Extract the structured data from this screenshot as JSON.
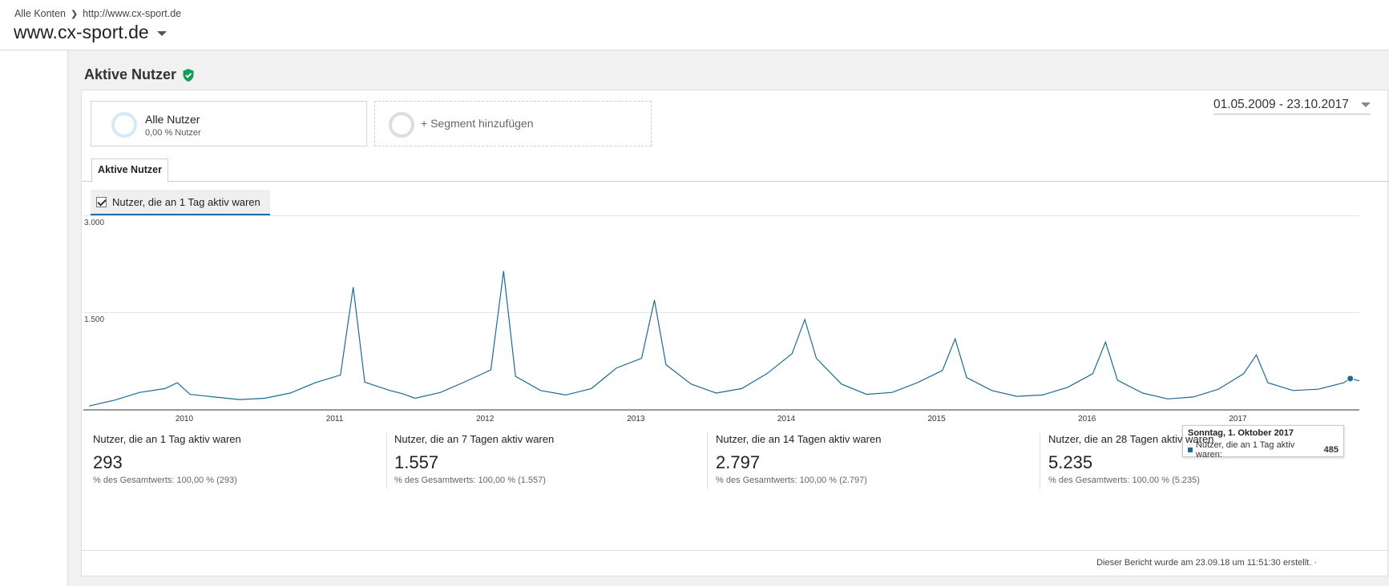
{
  "breadcrumb": {
    "root": "Alle Konten",
    "account": "http://www.cx-sport.de"
  },
  "property": {
    "name": "www.cx-sport.de"
  },
  "report": {
    "title": "Aktive Nutzer"
  },
  "segments": [
    {
      "name": "Alle Nutzer",
      "sub": "0,00 % Nutzer"
    },
    {
      "name": "+ Segment hinzufügen"
    }
  ],
  "date_range": "01.05.2009 - 23.10.2017",
  "tab": {
    "label": "Aktive Nutzer"
  },
  "metric_selector": {
    "label": "Nutzer, die an 1 Tag aktiv waren",
    "checked": true
  },
  "colors": {
    "series": "#1b6a97",
    "accent": "#1e6fa5",
    "verified": "#0f9d58"
  },
  "chart_data": {
    "type": "line",
    "title": "",
    "xlabel": "",
    "ylabel": "",
    "ylim": [
      0,
      3000
    ],
    "yticks": [
      "1.500",
      "3.000"
    ],
    "ytick_values": [
      1500,
      3000
    ],
    "grid": true,
    "x_range": [
      "2009-05-01",
      "2017-10-23"
    ],
    "xticks": [
      "2010",
      "2011",
      "2012",
      "2013",
      "2014",
      "2015",
      "2016",
      "2017"
    ],
    "series": [
      {
        "name": "Nutzer, die an 1 Tag aktiv waren",
        "note_on_resolution": "approximate weekly envelope read from chart",
        "x": [
          "2009-05",
          "2009-07",
          "2009-09",
          "2009-11",
          "2009-12",
          "2010-01",
          "2010-03",
          "2010-05",
          "2010-07",
          "2010-09",
          "2010-11",
          "2011-01",
          "2011-02",
          "2011-03",
          "2011-05",
          "2011-06",
          "2011-07",
          "2011-09",
          "2011-11",
          "2012-01",
          "2012-02",
          "2012-03",
          "2012-05",
          "2012-07",
          "2012-09",
          "2012-11",
          "2013-01",
          "2013-02",
          "2013-03",
          "2013-05",
          "2013-07",
          "2013-09",
          "2013-11",
          "2014-01",
          "2014-02",
          "2014-03",
          "2014-05",
          "2014-07",
          "2014-09",
          "2014-11",
          "2015-01",
          "2015-02",
          "2015-03",
          "2015-05",
          "2015-07",
          "2015-09",
          "2015-11",
          "2016-01",
          "2016-02",
          "2016-03",
          "2016-05",
          "2016-07",
          "2016-09",
          "2016-11",
          "2017-01",
          "2017-02",
          "2017-03",
          "2017-05",
          "2017-07",
          "2017-09",
          "2017-10-01",
          "2017-10-23"
        ],
        "y": [
          60,
          150,
          270,
          330,
          420,
          240,
          200,
          160,
          180,
          260,
          420,
          540,
          1900,
          430,
          300,
          250,
          180,
          270,
          440,
          620,
          2150,
          520,
          300,
          230,
          330,
          650,
          800,
          1700,
          700,
          400,
          260,
          330,
          560,
          870,
          1400,
          800,
          400,
          240,
          270,
          420,
          610,
          1100,
          500,
          300,
          210,
          230,
          350,
          560,
          1050,
          460,
          260,
          170,
          200,
          320,
          560,
          850,
          420,
          300,
          320,
          420,
          485,
          450
        ]
      }
    ],
    "tooltip": {
      "date": "Sonntag, 1. Oktober 2017",
      "series": "Nutzer, die an 1 Tag aktiv waren:",
      "value": "485"
    }
  },
  "scorecards": [
    {
      "name": "Nutzer, die an 1 Tag aktiv waren",
      "value": "293",
      "pct": "% des Gesamtwerts: 100,00 % (293)"
    },
    {
      "name": "Nutzer, die an 7 Tagen aktiv waren",
      "value": "1.557",
      "pct": "% des Gesamtwerts: 100,00 % (1.557)"
    },
    {
      "name": "Nutzer, die an 14 Tagen aktiv waren",
      "value": "2.797",
      "pct": "% des Gesamtwerts: 100,00 % (2.797)"
    },
    {
      "name": "Nutzer, die an 28 Tagen aktiv waren",
      "value": "5.235",
      "pct": "% des Gesamtwerts: 100,00 % (5.235)"
    }
  ],
  "footer": "Dieser Bericht wurde am 23.09.18 um 11:51:30 erstellt. ·"
}
